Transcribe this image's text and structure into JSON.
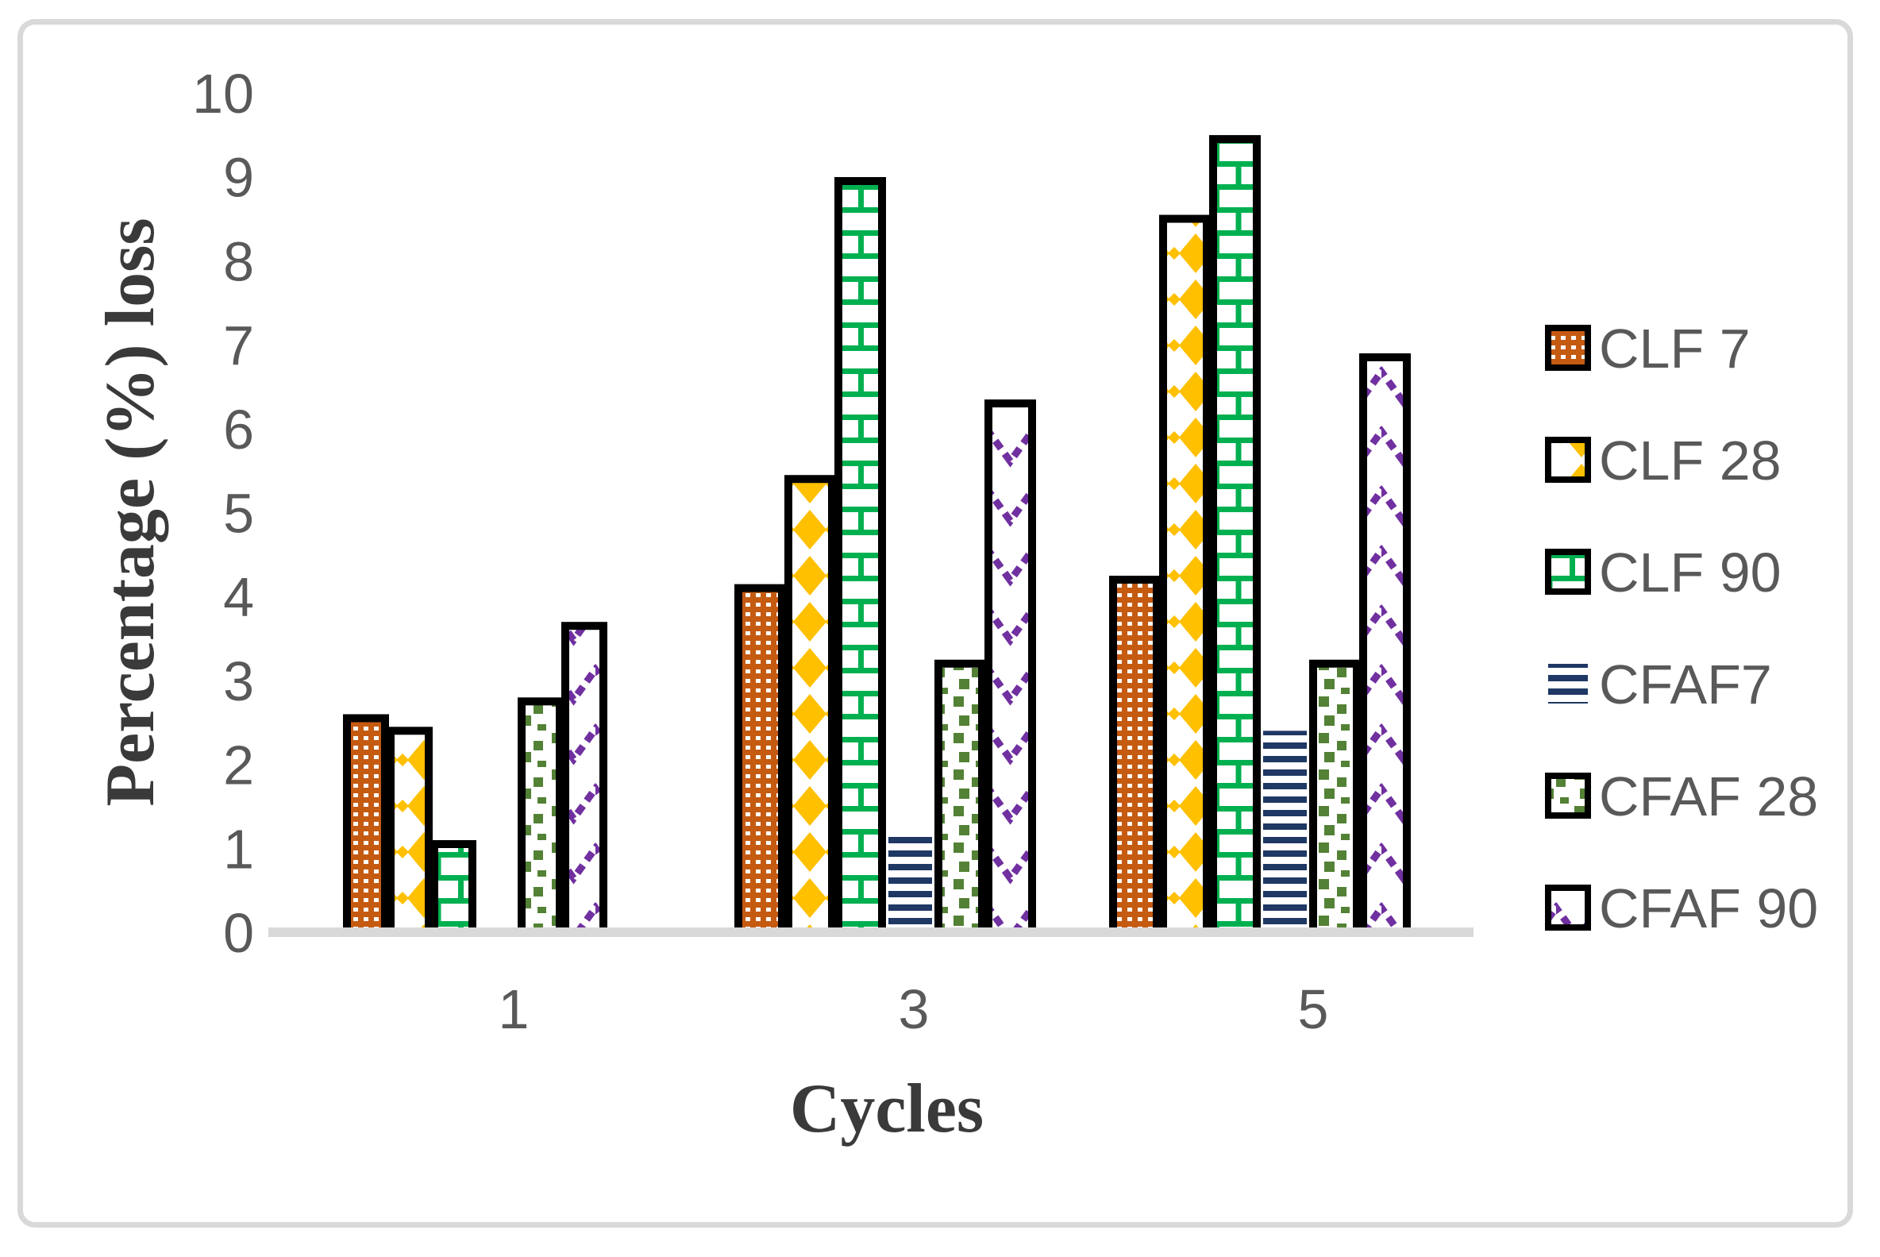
{
  "chart_data": {
    "type": "bar",
    "title": "",
    "xlabel": "Cycles",
    "ylabel": "Percentage (%) loss",
    "categories": [
      "1",
      "3",
      "5"
    ],
    "series": [
      {
        "name": "CLF 7",
        "color": "#C55A11",
        "pattern": "orange-grid",
        "values": [
          2.55,
          4.1,
          4.2
        ]
      },
      {
        "name": "CLF 28",
        "color": "#FFC000",
        "pattern": "gold-diamond",
        "values": [
          2.4,
          5.4,
          8.5
        ]
      },
      {
        "name": "CLF 90",
        "color": "#00B050",
        "pattern": "green-brick",
        "values": [
          1.05,
          8.95,
          9.45
        ]
      },
      {
        "name": "CFAF7",
        "color": "#1F3864",
        "pattern": "navy-stripes",
        "values": [
          0,
          1.2,
          2.4
        ]
      },
      {
        "name": "CFAF 28",
        "color": "#538135",
        "pattern": "olive-squares",
        "values": [
          2.75,
          3.2,
          3.2
        ]
      },
      {
        "name": "CFAF 90",
        "color": "#7030A0",
        "pattern": "purple-wave",
        "values": [
          3.65,
          6.3,
          6.85
        ]
      }
    ],
    "yticks": [
      0,
      1,
      2,
      3,
      4,
      5,
      6,
      7,
      8,
      9,
      10
    ],
    "ylim": [
      0,
      10
    ],
    "grid": false,
    "legend_position": "right",
    "bar_border_color": "#000000"
  },
  "colors": {
    "axis_line": "#D9D9D9",
    "frame_border": "#D9D9D9",
    "tick_text": "#595959",
    "title_text": "#3A3A3A",
    "background": "#FFFFFF"
  }
}
